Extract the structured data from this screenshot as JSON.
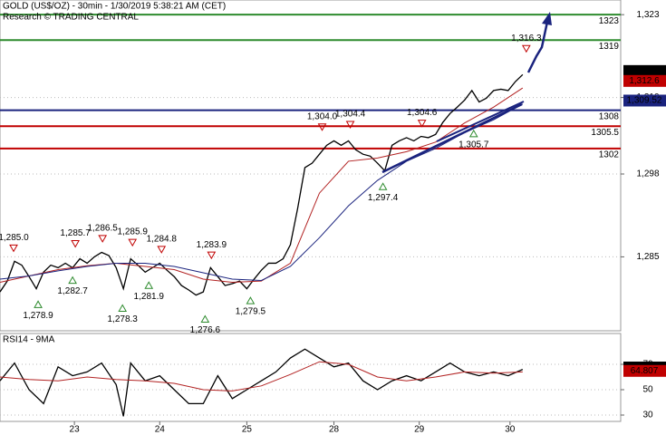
{
  "chart_data": [
    {
      "type": "line",
      "title": "GOLD (US$/OZ) - 30min - 1/30/2019 5:38:21 AM (CET)",
      "subtitle": "Research © TRADING CENTRAL",
      "xlim": [
        0,
        342
      ],
      "ylim": [
        1273.4,
        1325.3
      ],
      "yticks": [
        {
          "value": 1323,
          "label": "1,323"
        },
        {
          "value": 1310,
          "label": "1,310"
        },
        {
          "value": 1298,
          "label": "1,298"
        },
        {
          "value": 1285,
          "label": "1,285"
        }
      ],
      "grid": true,
      "series": [
        {
          "color": "#000000",
          "x": [
            0,
            4,
            8,
            12,
            16,
            20,
            24,
            28,
            32,
            36,
            40,
            44,
            48,
            52,
            56,
            60,
            64,
            68,
            72,
            76,
            80,
            84,
            88,
            92,
            96,
            100,
            104,
            108,
            112,
            116,
            120,
            124,
            128,
            132,
            136,
            140,
            144,
            148,
            152,
            156,
            160,
            164,
            168,
            172,
            176,
            180,
            184,
            188,
            192,
            196,
            200,
            204,
            208,
            212,
            216,
            220,
            224,
            228,
            232,
            236,
            240,
            244,
            248,
            252,
            256,
            260,
            264,
            268,
            272,
            276,
            280,
            284,
            288
          ],
          "values": [
            1279.5,
            1281.2,
            1284.3,
            1283.7,
            1281.9,
            1280.0,
            1282.6,
            1283.7,
            1283.3,
            1284.0,
            1283.3,
            1284.7,
            1284.0,
            1285.0,
            1285.7,
            1285.2,
            1283.3,
            1280.0,
            1284.7,
            1283.7,
            1282.6,
            1283.3,
            1284.0,
            1282.9,
            1281.9,
            1280.5,
            1279.8,
            1279.0,
            1279.5,
            1283.3,
            1281.9,
            1280.5,
            1280.8,
            1281.2,
            1280.0,
            1281.5,
            1282.9,
            1284.0,
            1284.0,
            1284.7,
            1286.9,
            1292.6,
            1299.0,
            1299.7,
            1301.1,
            1302.5,
            1303.2,
            1302.5,
            1303.2,
            1301.8,
            1301.1,
            1300.8,
            1299.7,
            1298.5,
            1302.5,
            1303.2,
            1303.7,
            1303.2,
            1303.9,
            1303.7,
            1304.2,
            1306.1,
            1307.5,
            1308.5,
            1309.6,
            1311.1,
            1309.3,
            1309.9,
            1311.1,
            1311.3,
            1311.1,
            1312.5,
            1313.6
          ]
        },
        {
          "color": "#b22222",
          "x": [
            0,
            16,
            32,
            48,
            64,
            80,
            96,
            112,
            128,
            144,
            160,
            176,
            192,
            208,
            224,
            240,
            256,
            272,
            288
          ],
          "values": [
            1281,
            1282,
            1283,
            1283.6,
            1284,
            1283.5,
            1283,
            1281.5,
            1281,
            1281.2,
            1284,
            1295,
            1300,
            1300.5,
            1301.5,
            1303,
            1306,
            1308.5,
            1311.5
          ]
        },
        {
          "color": "#1a237e",
          "x": [
            0,
            16,
            32,
            48,
            64,
            80,
            96,
            112,
            128,
            144,
            160,
            176,
            192,
            208,
            224,
            240,
            256,
            272,
            288
          ],
          "values": [
            1281.5,
            1282,
            1282.8,
            1283.5,
            1284,
            1284,
            1283.5,
            1282.5,
            1281.5,
            1281.3,
            1283.5,
            1288,
            1293,
            1297,
            1300,
            1302,
            1304.5,
            1306.5,
            1309
          ]
        }
      ],
      "levels": [
        {
          "value": 1323,
          "color": "#2e8b2e"
        },
        {
          "value": 1319,
          "color": "#2e8b2e"
        },
        {
          "value": 1308,
          "color": "#1a237e"
        },
        {
          "value": 1305.5,
          "color": "#c00000"
        },
        {
          "value": 1302,
          "color": "#c00000"
        }
      ],
      "annotations": [
        {
          "label": "1,285.0",
          "value": 1285.0,
          "x": 7.5,
          "kind": "high"
        },
        {
          "label": "1,285.7",
          "value": 1285.7,
          "x": 41.5,
          "kind": "high"
        },
        {
          "label": "1,286.5",
          "value": 1286.5,
          "x": 56.5,
          "kind": "high"
        },
        {
          "label": "1,285.9",
          "value": 1285.9,
          "x": 73,
          "kind": "high"
        },
        {
          "label": "1,284.8",
          "value": 1284.8,
          "x": 89,
          "kind": "high"
        },
        {
          "label": "1,283.9",
          "value": 1283.9,
          "x": 116.5,
          "kind": "high"
        },
        {
          "label": "1,304.0",
          "value": 1304.0,
          "x": 177.5,
          "kind": "high"
        },
        {
          "label": "1,304.4",
          "value": 1304.4,
          "x": 193,
          "kind": "high"
        },
        {
          "label": "1,304.6",
          "value": 1304.6,
          "x": 232.5,
          "kind": "high"
        },
        {
          "label": "1,316.3",
          "value": 1316.3,
          "x": 290,
          "kind": "high"
        },
        {
          "label": "1,278.9",
          "value": 1278.9,
          "x": 21,
          "kind": "low"
        },
        {
          "label": "1,282.7",
          "value": 1282.7,
          "x": 40,
          "kind": "low"
        },
        {
          "label": "1,278.3",
          "value": 1278.3,
          "x": 67.5,
          "kind": "low"
        },
        {
          "label": "1,281.9",
          "value": 1281.9,
          "x": 82,
          "kind": "low"
        },
        {
          "label": "1,276.6",
          "value": 1276.6,
          "x": 113,
          "kind": "low"
        },
        {
          "label": "1,279.5",
          "value": 1279.5,
          "x": 138,
          "kind": "low"
        },
        {
          "label": "1,297.4",
          "value": 1297.4,
          "x": 211,
          "kind": "low"
        },
        {
          "label": "1,305.7",
          "value": 1305.7,
          "x": 261,
          "kind": "low"
        }
      ],
      "price_labels": [
        {
          "value": 1314.16,
          "label": "1,314.16",
          "color": "#000000"
        },
        {
          "value": 1312.6,
          "label": "1,312.6",
          "color": "#c00000"
        },
        {
          "value": 1309.52,
          "label": "1,309.52",
          "color": "#1a237e"
        }
      ]
    },
    {
      "type": "line",
      "title": "RSI14 - 9MA",
      "xlim": [
        0,
        342
      ],
      "xticks": [
        {
          "value": 41,
          "label": "23"
        },
        {
          "value": 88,
          "label": "24"
        },
        {
          "value": 136,
          "label": "25"
        },
        {
          "value": 184,
          "label": "28"
        },
        {
          "value": 231,
          "label": "29"
        },
        {
          "value": 281,
          "label": "30"
        }
      ],
      "ylim": [
        25,
        94.3
      ],
      "yticks": [
        30,
        50,
        70
      ],
      "grid": true,
      "series": [
        {
          "color": "#000000",
          "x": [
            0,
            8,
            16,
            24,
            32,
            40,
            48,
            56,
            64,
            68,
            72,
            80,
            88,
            96,
            104,
            112,
            120,
            128,
            136,
            144,
            152,
            160,
            168,
            176,
            184,
            192,
            200,
            208,
            216,
            224,
            232,
            240,
            248,
            256,
            264,
            272,
            280,
            288
          ],
          "values": [
            57,
            71,
            50,
            39,
            68,
            61,
            64,
            71,
            54,
            29,
            71,
            57,
            61,
            50,
            39,
            39,
            61,
            43,
            50,
            57,
            64,
            75,
            82,
            75,
            68,
            71,
            57,
            50,
            57,
            61,
            57,
            64,
            71,
            64,
            61,
            64,
            61,
            66
          ]
        },
        {
          "color": "#b22222",
          "x": [
            0,
            16,
            32,
            48,
            64,
            80,
            96,
            112,
            128,
            144,
            160,
            176,
            192,
            208,
            224,
            240,
            256,
            272,
            288
          ],
          "values": [
            60,
            58,
            57,
            60,
            58,
            57,
            55,
            50,
            49,
            53,
            62,
            72,
            70,
            60,
            57,
            60,
            64,
            63,
            64
          ]
        }
      ],
      "price_labels": [
        {
          "value": 67.504,
          "color": "#000000"
        },
        {
          "value": 64.807,
          "color": "#c00000"
        }
      ]
    }
  ]
}
